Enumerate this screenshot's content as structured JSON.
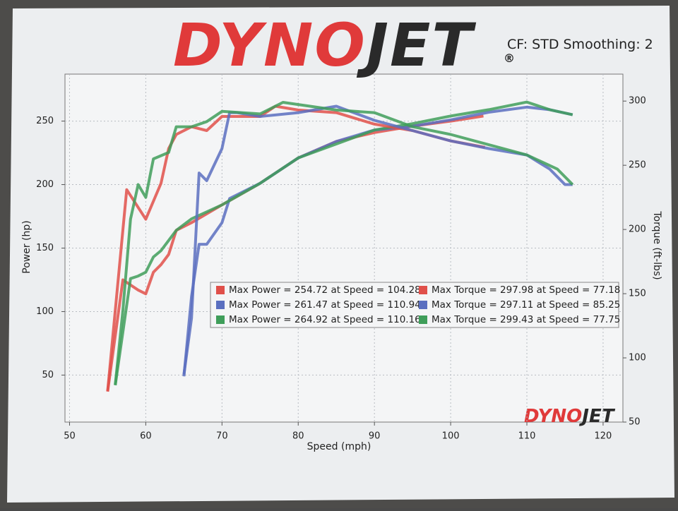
{
  "logo": {
    "red": "DYNO",
    "dark": "JET",
    "mark": "®"
  },
  "watermark": {
    "red": "DYNO",
    "dark": "JET"
  },
  "chart_data": {
    "type": "line",
    "subtitle": "CF: STD Smoothing: 2",
    "x_label": "Speed (mph)",
    "y_label": "Power (hp)",
    "y2_label": "Torque (ft-lbs)",
    "xlim": [
      49.4,
      122.6
    ],
    "xticks": [
      50,
      60,
      70,
      80,
      90,
      100,
      110,
      120
    ],
    "ylim": [
      13,
      287
    ],
    "yticks": [
      50,
      100,
      150,
      200,
      250
    ],
    "y2lim": [
      50,
      321
    ],
    "y2ticks": [
      50,
      100,
      150,
      200,
      250,
      300
    ],
    "grid": true,
    "series": [
      {
        "name": "Max Power = 254.72 at Speed = 104.28",
        "color": "#e0504a",
        "x": [
          55,
          57,
          59,
          60,
          61,
          62,
          63,
          64,
          66,
          70,
          75,
          80,
          85,
          90,
          95,
          100,
          104.3
        ],
        "values": [
          37,
          125,
          117,
          114,
          131,
          137,
          145,
          164,
          170,
          184,
          201,
          221,
          234,
          241,
          246,
          250,
          254
        ]
      },
      {
        "name": "Max Power = 261.47 at Speed = 110.94",
        "color": "#5a6fc0",
        "x": [
          65,
          66,
          67,
          68,
          70,
          71,
          75,
          80,
          85,
          90,
          95,
          100,
          105,
          110,
          113,
          116
        ],
        "values": [
          49,
          112,
          153,
          153,
          170,
          189,
          201,
          221,
          234,
          243,
          246,
          251,
          257,
          261,
          259,
          255
        ]
      },
      {
        "name": "Max Power = 264.92 at Speed = 110.16",
        "color": "#3f9e5a",
        "x": [
          56,
          57,
          58,
          59,
          60,
          61,
          62,
          64,
          66,
          70,
          75,
          80,
          85,
          90,
          95,
          100,
          105,
          110,
          113,
          116
        ],
        "values": [
          42,
          84,
          126,
          128,
          131,
          143,
          148,
          164,
          173,
          184,
          201,
          221,
          232,
          243,
          248,
          254,
          259,
          265,
          259,
          255
        ]
      },
      {
        "name": "Max Torque = 297.98 at Speed = 77.18",
        "color": "#e0504a",
        "axis": "y2",
        "x": [
          55,
          57.5,
          60,
          62,
          63,
          64,
          66,
          68,
          70,
          75,
          77,
          80,
          85,
          90,
          95,
          100,
          104.5
        ],
        "values": [
          74,
          231,
          208,
          236,
          263,
          274,
          280,
          277,
          288,
          288,
          296,
          293,
          291,
          282,
          277,
          269,
          264
        ]
      },
      {
        "name": "Max Torque = 297.11 at Speed = 85.25",
        "color": "#5a6fc0",
        "axis": "y2",
        "x": [
          65,
          66,
          67,
          68,
          70,
          71,
          72,
          75,
          80,
          85,
          90,
          95,
          100,
          105,
          110,
          113,
          115,
          116
        ],
        "values": [
          87,
          131,
          244,
          238,
          263,
          291,
          291,
          288,
          291,
          296,
          285,
          277,
          269,
          263,
          258,
          247,
          235,
          235
        ]
      },
      {
        "name": "Max Torque = 299.43 at Speed = 77.75",
        "color": "#3f9e5a",
        "axis": "y2",
        "x": [
          56,
          57,
          58,
          59,
          60,
          61,
          63,
          64,
          66,
          68,
          70,
          75,
          78,
          85,
          90,
          95,
          100,
          105,
          110,
          114,
          116
        ],
        "values": [
          79,
          137,
          208,
          235,
          225,
          255,
          260,
          280,
          280,
          284,
          292,
          290,
          299,
          293,
          291,
          280,
          274,
          266,
          258,
          247,
          235
        ]
      }
    ]
  }
}
